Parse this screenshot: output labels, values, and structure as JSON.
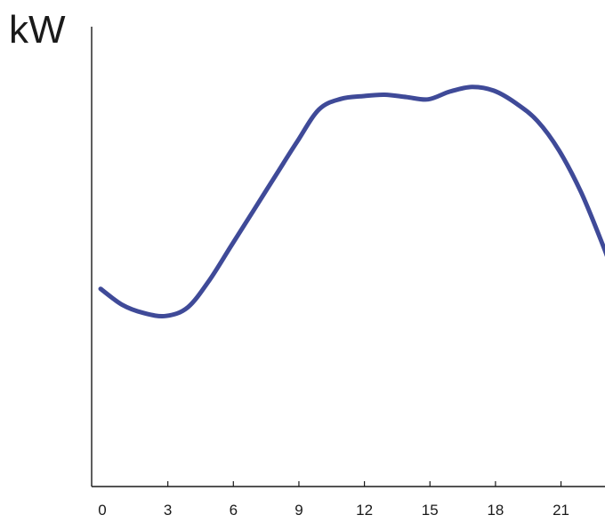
{
  "chart_data": {
    "type": "line",
    "title": "",
    "xlabel": "",
    "ylabel": "kW",
    "xlim": [
      0,
      23.5
    ],
    "ylim": [
      0,
      100
    ],
    "xticks": [
      0,
      3,
      6,
      9,
      12,
      15,
      18,
      21
    ],
    "xtick_labels": [
      "0",
      "3",
      "6",
      "9",
      12,
      15,
      18,
      21
    ],
    "yticks": [],
    "grid": false,
    "legend": "none",
    "series": [
      {
        "color": "#3f4a98",
        "x": [
          0,
          1,
          2,
          3,
          4,
          5,
          6,
          7,
          8,
          9,
          10,
          11,
          12,
          13,
          14,
          15,
          16,
          17,
          18,
          19,
          20,
          21,
          22,
          23,
          23.5
        ],
        "values": [
          43,
          39.5,
          37.7,
          37.1,
          39,
          45,
          52.5,
          60,
          67.5,
          75,
          82,
          84.3,
          84.9,
          85.2,
          84.7,
          84.2,
          85.9,
          86.9,
          86.1,
          83.4,
          79.5,
          73,
          64,
          52.5,
          46
        ]
      }
    ]
  }
}
